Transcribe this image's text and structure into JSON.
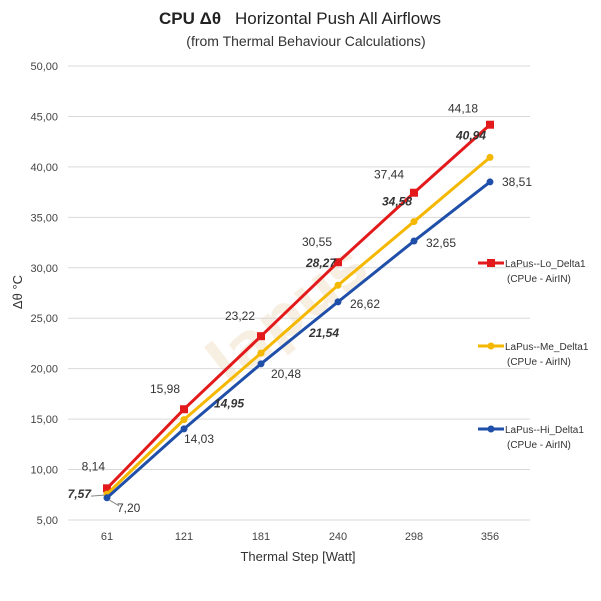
{
  "chart_data": {
    "type": "line",
    "title_bold": "CPU  Δθ",
    "title_rest": "Horizontal Push All Airflows",
    "subtitle": "(from Thermal Behaviour Calculations)",
    "xlabel": "Thermal Step [Watt]",
    "ylabel": "Δθ °C",
    "categories": [
      "61",
      "121",
      "181",
      "240",
      "298",
      "356"
    ],
    "ylim": [
      5,
      50
    ],
    "yticks": [
      "5,00",
      "10,00",
      "15,00",
      "20,00",
      "25,00",
      "30,00",
      "35,00",
      "40,00",
      "45,00",
      "50,00"
    ],
    "grid": true,
    "legend_position": "right",
    "watermark": "lapus",
    "series": [
      {
        "name": "LaPus--Lo_Delta1",
        "name_line2": "(CPUe - AirIN)",
        "color": "#e31a1c",
        "marker": "square",
        "values": [
          8.14,
          15.98,
          23.22,
          30.55,
          37.44,
          44.18
        ],
        "labels": [
          "8,14",
          "15,98",
          "23,22",
          "30,55",
          "37,44",
          "44,18"
        ],
        "emphasis": false
      },
      {
        "name": "LaPus--Me_Delta1",
        "name_line2": "(CPUe - AirIN)",
        "color": "#f5b800",
        "marker": "circle",
        "values": [
          7.57,
          14.95,
          21.54,
          28.27,
          34.58,
          40.94
        ],
        "labels": [
          "7,57",
          "14,95",
          "21,54",
          "28,27",
          "34,58",
          "40,94"
        ],
        "emphasis": true
      },
      {
        "name": "LaPus--Hi_Delta1",
        "name_line2": "(CPUe - AirIN)",
        "color": "#1f4fa8",
        "marker": "circle",
        "values": [
          7.2,
          14.03,
          20.48,
          26.62,
          32.65,
          38.51
        ],
        "labels": [
          "7,20",
          "14,03",
          "20,48",
          "26,62",
          "32,65",
          "38,51"
        ],
        "emphasis": false
      }
    ]
  }
}
